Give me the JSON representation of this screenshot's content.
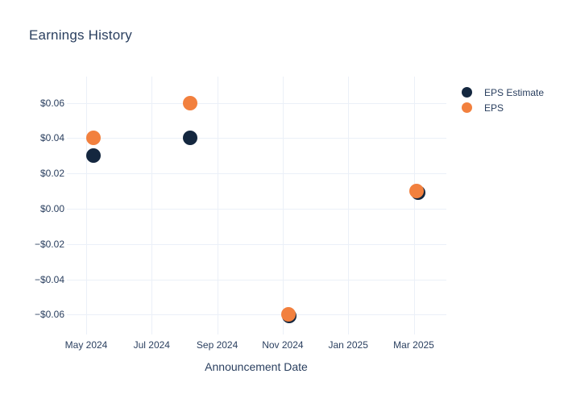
{
  "title": "Earnings History",
  "colors": {
    "eps_estimate": "#14273f",
    "eps": "#f2803e",
    "gridline": "#ebf0f8",
    "text": "#2a3f5f",
    "background": "#ffffff"
  },
  "legend": {
    "items": [
      {
        "label": "EPS Estimate",
        "color": "#14273f"
      },
      {
        "label": "EPS",
        "color": "#f2803e"
      }
    ]
  },
  "chart_data": {
    "type": "scatter",
    "title": "Earnings History",
    "xlabel": "Announcement Date",
    "ylabel": "",
    "grid": true,
    "legend_position": "right",
    "x_ticks": [
      {
        "pos_months": 0,
        "label": "May 2024"
      },
      {
        "pos_months": 2,
        "label": "Jul 2024"
      },
      {
        "pos_months": 4,
        "label": "Sep 2024"
      },
      {
        "pos_months": 6,
        "label": "Nov 2024"
      },
      {
        "pos_months": 8,
        "label": "Jan 2025"
      },
      {
        "pos_months": 10,
        "label": "Mar 2025"
      }
    ],
    "y_ticks": [
      {
        "value": 0.06,
        "label": "$0.06"
      },
      {
        "value": 0.04,
        "label": "$0.04"
      },
      {
        "value": 0.02,
        "label": "$0.02"
      },
      {
        "value": 0.0,
        "label": "$0.00"
      },
      {
        "value": -0.02,
        "label": "−$0.02"
      },
      {
        "value": -0.04,
        "label": "−$0.04"
      },
      {
        "value": -0.06,
        "label": "−$0.06"
      }
    ],
    "xlim_months": [
      -0.59,
      11.0
    ],
    "ylim": [
      -0.0712,
      0.0749
    ],
    "series": [
      {
        "name": "EPS Estimate",
        "color": "#14273f",
        "points": [
          {
            "x_months": 0.22,
            "date_approx": "2024-05-07",
            "y": 0.03
          },
          {
            "x_months": 3.17,
            "date_approx": "2024-08-06",
            "y": 0.04
          },
          {
            "x_months": 6.17,
            "date_approx": "2024-11-06",
            "y": -0.06
          },
          {
            "x_months": 10.09,
            "date_approx": "2025-03-05",
            "y": 0.01
          }
        ]
      },
      {
        "name": "EPS",
        "color": "#f2803e",
        "points": [
          {
            "x_months": 0.22,
            "date_approx": "2024-05-07",
            "y": 0.04
          },
          {
            "x_months": 3.17,
            "date_approx": "2024-08-06",
            "y": 0.06
          },
          {
            "x_months": 6.17,
            "date_approx": "2024-11-06",
            "y": -0.06
          },
          {
            "x_months": 10.09,
            "date_approx": "2025-03-05",
            "y": 0.01
          }
        ]
      }
    ]
  }
}
